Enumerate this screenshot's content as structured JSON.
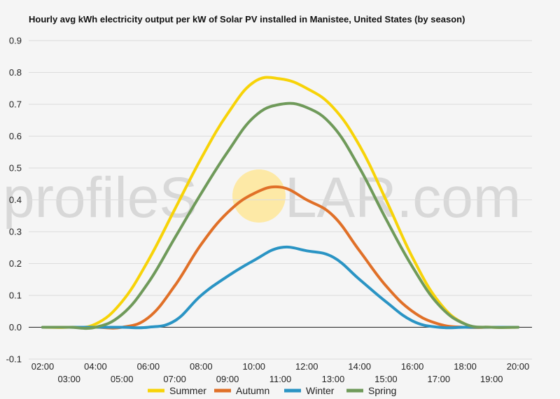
{
  "watermark": {
    "left": "profileS",
    "right": "LAR.com",
    "sun_color": "#fde9a6"
  },
  "chart_data": {
    "type": "line",
    "title": "Hourly avg kWh electricity output per kW of Solar PV installed in Manistee, United States (by season)",
    "xlabel": "",
    "ylabel": "",
    "x": [
      "02:00",
      "03:00",
      "04:00",
      "05:00",
      "06:00",
      "07:00",
      "08:00",
      "09:00",
      "10:00",
      "11:00",
      "12:00",
      "13:00",
      "14:00",
      "15:00",
      "16:00",
      "17:00",
      "18:00",
      "19:00",
      "20:00"
    ],
    "ylim": [
      -0.1,
      0.9
    ],
    "yticks": [
      "-0.1",
      "0.0",
      "0.1",
      "0.2",
      "0.3",
      "0.4",
      "0.5",
      "0.6",
      "0.7",
      "0.8",
      "0.9"
    ],
    "grid": true,
    "legend_position": "bottom",
    "series": [
      {
        "name": "Summer",
        "color": "#f7d308",
        "values": [
          0,
          0,
          0.01,
          0.08,
          0.21,
          0.37,
          0.53,
          0.67,
          0.77,
          0.78,
          0.75,
          0.69,
          0.57,
          0.4,
          0.22,
          0.08,
          0.01,
          0,
          0
        ]
      },
      {
        "name": "Autumn",
        "color": "#e07028",
        "values": [
          0,
          0,
          0,
          0,
          0.03,
          0.13,
          0.26,
          0.36,
          0.42,
          0.44,
          0.4,
          0.35,
          0.24,
          0.13,
          0.05,
          0.01,
          0,
          0,
          0
        ]
      },
      {
        "name": "Winter",
        "color": "#2a94c4",
        "values": [
          0,
          0,
          0,
          0,
          0,
          0.02,
          0.1,
          0.16,
          0.21,
          0.25,
          0.24,
          0.22,
          0.15,
          0.08,
          0.02,
          0,
          0,
          0,
          0
        ]
      },
      {
        "name": "Spring",
        "color": "#6f9a5a",
        "values": [
          0,
          0,
          0,
          0.04,
          0.14,
          0.28,
          0.42,
          0.55,
          0.66,
          0.7,
          0.69,
          0.63,
          0.5,
          0.34,
          0.19,
          0.07,
          0.01,
          0,
          0
        ]
      }
    ]
  }
}
